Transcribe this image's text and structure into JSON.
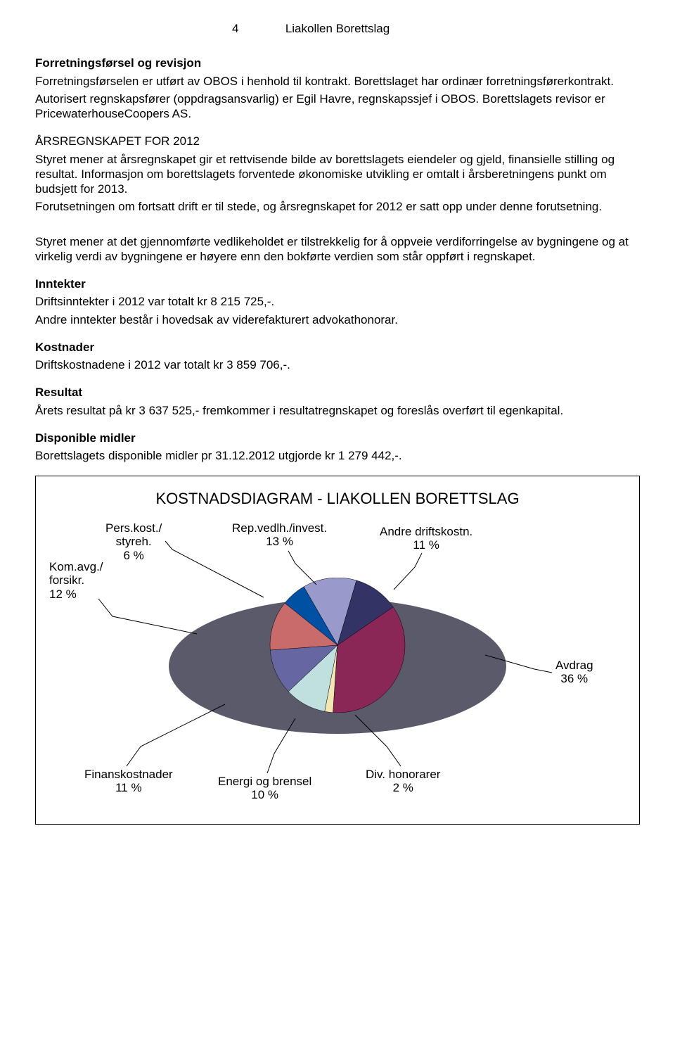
{
  "header": {
    "page_number": "4",
    "doc_name": "Liakollen Borettslag"
  },
  "sections": {
    "s1_title": "Forretningsførsel og revisjon",
    "s1_p1": "Forretningsførselen er utført av OBOS i henhold til kontrakt. Borettslaget har ordinær forretningsførerkontrakt.",
    "s1_p2": "Autorisert regnskapsfører (oppdragsansvarlig) er Egil Havre, regnskapssjef i OBOS. Borettslagets revisor er PricewaterhouseCoopers AS.",
    "s2_title": "ÅRSREGNSKAPET FOR 2012",
    "s2_p1": "Styret mener at årsregnskapet gir et rettvisende bilde av borettslagets eiendeler og gjeld, finansielle stilling og resultat. Informasjon om borettslagets forventede økonomiske utvikling er omtalt i årsberetningens punkt om budsjett for 2013.",
    "s2_p2": "Forutsetningen om fortsatt drift er til stede, og årsregnskapet for 2012 er satt opp under denne forutsetning.",
    "s3_p1": "Styret mener at det gjennomførte vedlikeholdet er tilstrekkelig for å oppveie verdiforringelse av bygningene og at virkelig verdi av bygningene er høyere enn den bokførte verdien som står oppført i regnskapet.",
    "inntekter_title": "Inntekter",
    "inntekter_p1": "Driftsinntekter i 2012 var totalt kr 8 215 725,-.",
    "inntekter_p2": "Andre inntekter består i hovedsak av viderefakturert advokathonorar.",
    "kostnader_title": "Kostnader",
    "kostnader_p1": "Driftskostnadene i 2012 var totalt kr 3 859 706,-.",
    "resultat_title": "Resultat",
    "resultat_p1": "Årets resultat på kr 3 637 525,- fremkommer i resultatregnskapet og foreslås overført til egenkapital.",
    "disponible_title": "Disponible midler",
    "disponible_p1": "Borettslagets disponible midler pr 31.12.2012 utgjorde kr 1 279 442,-."
  },
  "chart": {
    "title": "KOSTNADSDIAGRAM - LIAKOLLEN BORETTSLAG",
    "type": "pie-3d",
    "slices": [
      {
        "label_l1": "Rep.vedlh./invest.",
        "label_l2": "13 %",
        "value": 13,
        "color": "#9999cc"
      },
      {
        "label_l1": "Andre driftskostn.",
        "label_l2": "11 %",
        "value": 11,
        "color": "#333366"
      },
      {
        "label_l1": "Avdrag",
        "label_l2": "36 %",
        "value": 36,
        "color": "#8b2757"
      },
      {
        "label_l1": "Div. honorarer",
        "label_l2": "2 %",
        "value": 2,
        "color": "#f2e6b3"
      },
      {
        "label_l1": "Energi og brensel",
        "label_l2": "10 %",
        "value": 10,
        "color": "#c0e0e0"
      },
      {
        "label_l1": "Finanskostnader",
        "label_l2": "11 %",
        "value": 11,
        "color": "#6666a3"
      },
      {
        "label_l1": "Kom.avg./",
        "label_l2": "forsikr.",
        "label_l3": "12 %",
        "value": 12,
        "color": "#c96b6b"
      },
      {
        "label_l1": "Pers.kost./",
        "label_l2": "styreh.",
        "label_l3": "6 %",
        "value": 6,
        "color": "#0051a3"
      }
    ],
    "stroke": "#000000",
    "side_color": "#5a5a6a"
  }
}
